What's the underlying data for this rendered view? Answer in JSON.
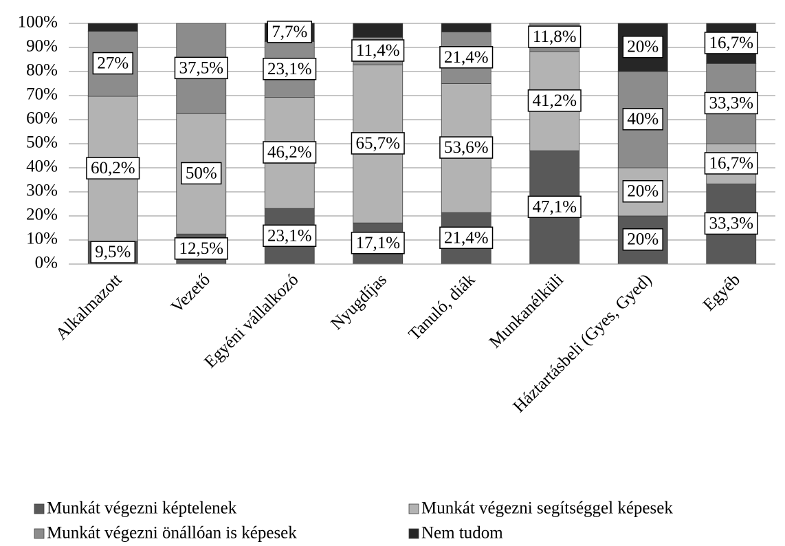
{
  "chart_data": {
    "type": "stacked_bar",
    "categories": [
      "Alkalmazott",
      "Vezető",
      "Egyéni vállalkozó",
      "Nyugdíjas",
      "Tanuló, diák",
      "Munkanélküli",
      "Háztartásbeli (Gyes, Gyed)",
      "Egyéb"
    ],
    "series": [
      {
        "name": "Munkát végezni képtelenek",
        "color": "#595959",
        "values": [
          9.5,
          12.5,
          23.1,
          17.1,
          21.4,
          47.1,
          20,
          33.3
        ],
        "value_labels": [
          "9,5%",
          "12,5%",
          "23,1%",
          "17,1%",
          "21,4%",
          "47,1%",
          "20%",
          "33,3%"
        ]
      },
      {
        "name": "Munkát végezni segítséggel képesek",
        "color": "#b3b3b3",
        "values": [
          60.2,
          50,
          46.2,
          65.7,
          53.6,
          41.2,
          20,
          16.7
        ],
        "value_labels": [
          "60,2%",
          "50%",
          "46,2%",
          "65,7%",
          "53,6%",
          "41,2%",
          "20%",
          "16,7%"
        ]
      },
      {
        "name": "Munkát végezni önállóan is képesek",
        "color": "#8c8c8c",
        "values": [
          27,
          37.5,
          23.1,
          11.4,
          21.4,
          11.8,
          40,
          33.3
        ],
        "value_labels": [
          "27%",
          "37,5%",
          "23,1%",
          "11,4%",
          "21,4%",
          "11,8%",
          "40%",
          "33,3%"
        ]
      },
      {
        "name": "Nem tudom",
        "color": "#262626",
        "values": [
          3.3,
          0,
          7.7,
          5.8,
          3.6,
          0,
          20,
          16.7
        ],
        "value_labels": [
          null,
          null,
          "7,7%",
          null,
          null,
          null,
          "20%",
          "16,7%"
        ]
      }
    ],
    "ylim": [
      0,
      100
    ],
    "yticks": [
      {
        "value": 0,
        "label": "0%"
      },
      {
        "value": 10,
        "label": "10%"
      },
      {
        "value": 20,
        "label": "20%"
      },
      {
        "value": 30,
        "label": "30%"
      },
      {
        "value": 40,
        "label": "40%"
      },
      {
        "value": 50,
        "label": "50%"
      },
      {
        "value": 60,
        "label": "60%"
      },
      {
        "value": 70,
        "label": "70%"
      },
      {
        "value": 80,
        "label": "80%"
      },
      {
        "value": 90,
        "label": "90%"
      },
      {
        "value": 100,
        "label": "100%"
      }
    ],
    "grid": true
  }
}
